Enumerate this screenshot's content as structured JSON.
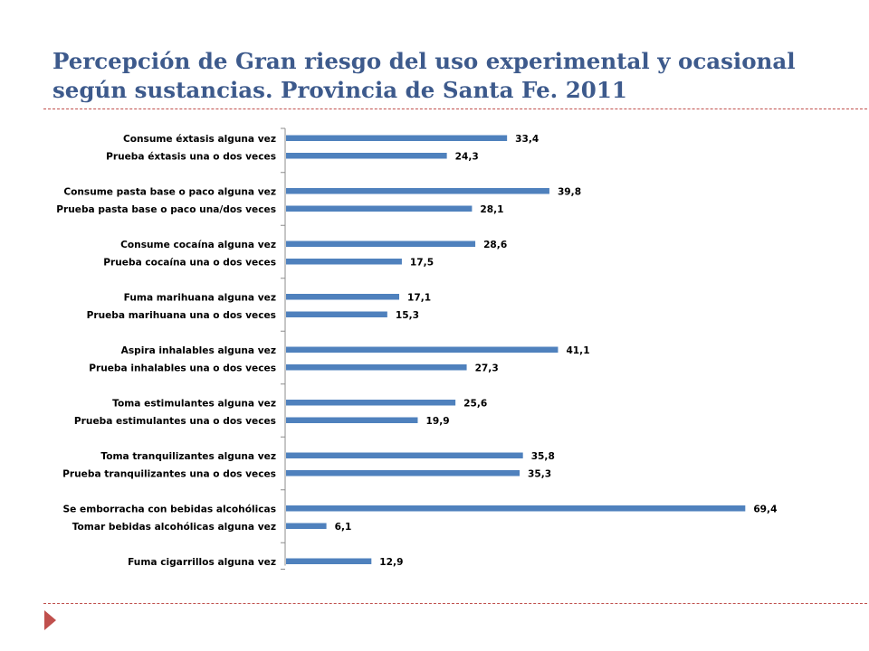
{
  "slide": {
    "title": "Percepción de Gran riesgo del uso experimental y ocasional según sustancias. Provincia de Santa Fe. 2011"
  },
  "colors": {
    "title": "#3d5a8c",
    "bar": "#4f81bd",
    "divider": "#c0504d",
    "arrow": "#c0504d"
  },
  "icons": {
    "nav": "triangle-right-icon"
  },
  "chart_data": {
    "type": "bar",
    "orientation": "horizontal",
    "title": "",
    "xlabel": "",
    "ylabel": "",
    "xlim": [
      0,
      75
    ],
    "grid": false,
    "legend": "none",
    "slots": 23,
    "categories": [
      "Consume éxtasis alguna vez",
      "Prueba éxtasis una o dos veces",
      "Consume pasta base o paco alguna vez",
      "Prueba pasta base o paco una/dos veces",
      "Consume cocaína alguna vez",
      "Prueba cocaína una o dos veces",
      "Fuma marihuana alguna vez",
      "Prueba marihuana una o dos veces",
      "Aspira inhalables alguna vez",
      "Prueba inhalables una o dos veces",
      "Toma estimulantes alguna vez",
      "Prueba estimulantes una o dos veces",
      "Toma tranquilizantes alguna vez",
      "Prueba tranquilizantes una o dos veces",
      "Se emborracha con bebidas alcohólicas",
      "Tomar bebidas alcohólicas alguna vez",
      "Fuma cigarrillos alguna vez"
    ],
    "slot_index": [
      0,
      1,
      3,
      4,
      6,
      7,
      9,
      10,
      12,
      13,
      15,
      16,
      18,
      19,
      21,
      22,
      24
    ],
    "values": [
      33.4,
      24.3,
      39.8,
      28.1,
      28.6,
      17.5,
      17.1,
      15.3,
      41.1,
      27.3,
      25.6,
      19.9,
      35.8,
      35.3,
      69.4,
      6.1,
      12.9
    ],
    "value_labels": [
      "33,4",
      "24,3",
      "39,8",
      "28,1",
      "28,6",
      "17,5",
      "17,1",
      "15,3",
      "41,1",
      "27,3",
      "25,6",
      "19,9",
      "35,8",
      "35,3",
      "69,4",
      "6,1",
      "12,9"
    ]
  }
}
